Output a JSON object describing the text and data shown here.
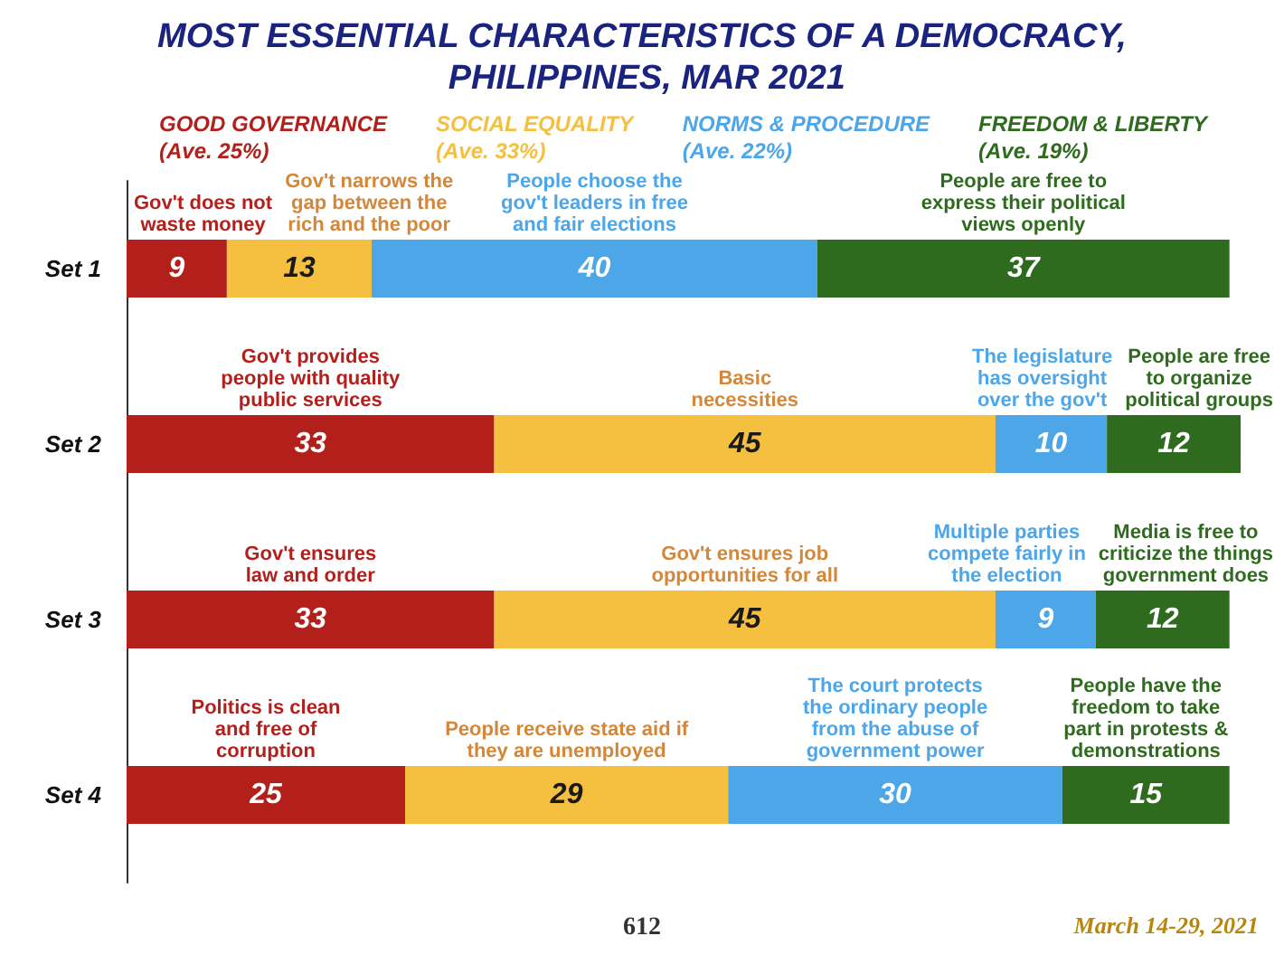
{
  "chart_data": {
    "type": "bar",
    "orientation": "horizontal",
    "stacked": true,
    "title": "MOST ESSENTIAL CHARACTERISTICS OF A DEMOCRACY, PHILIPPINES, MAR 2021",
    "categories": [
      "Set 1",
      "Set 2",
      "Set 3",
      "Set 4"
    ],
    "series": [
      {
        "name": "GOOD GOVERNANCE (Ave. 25%)",
        "color": "#b3201c",
        "values": [
          9,
          33,
          33,
          25
        ]
      },
      {
        "name": "SOCIAL EQUALITY (Ave. 33%)",
        "color": "#f5bf3f",
        "values": [
          13,
          45,
          45,
          29
        ]
      },
      {
        "name": "NORMS & PROCEDURE (Ave. 22%)",
        "color": "#4da6e8",
        "values": [
          40,
          10,
          9,
          30
        ]
      },
      {
        "name": "FREEDOM & LIBERTY (Ave. 19%)",
        "color": "#2e6b1f",
        "values": [
          37,
          12,
          12,
          15
        ]
      }
    ],
    "data_labels": true,
    "legend": "top",
    "tick_labels": "y",
    "grid": false,
    "annotations": [
      "Gov't does not\nwaste money",
      "Gov't narrows the\ngap between the\nrich and the poor",
      "People choose the\ngov't leaders in free\nand fair elections",
      "People are free to\nexpress their political\nviews openly",
      "Gov't provides\npeople with quality\npublic services",
      "Basic\nnecessities",
      "The legislature\nhas oversight\nover the gov't",
      "People are free\nto organize\npolitical groups",
      "Gov't ensures\nlaw and order",
      "Gov't ensures job\nopportunities for all",
      "Multiple parties\ncompete fairly in\nthe election",
      "Media is free to\ncriticize the things\ngovernment does",
      "Politics is clean\nand free of\ncorruption",
      "People receive state aid if\nthey are unemployed",
      "The court protects\nthe ordinary people\nfrom the abuse of\ngovernment power",
      "People have the\nfreedom to take\npart in protests &\ndemonstrations",
      "March 14-29, 2021",
      "612"
    ]
  }
}
